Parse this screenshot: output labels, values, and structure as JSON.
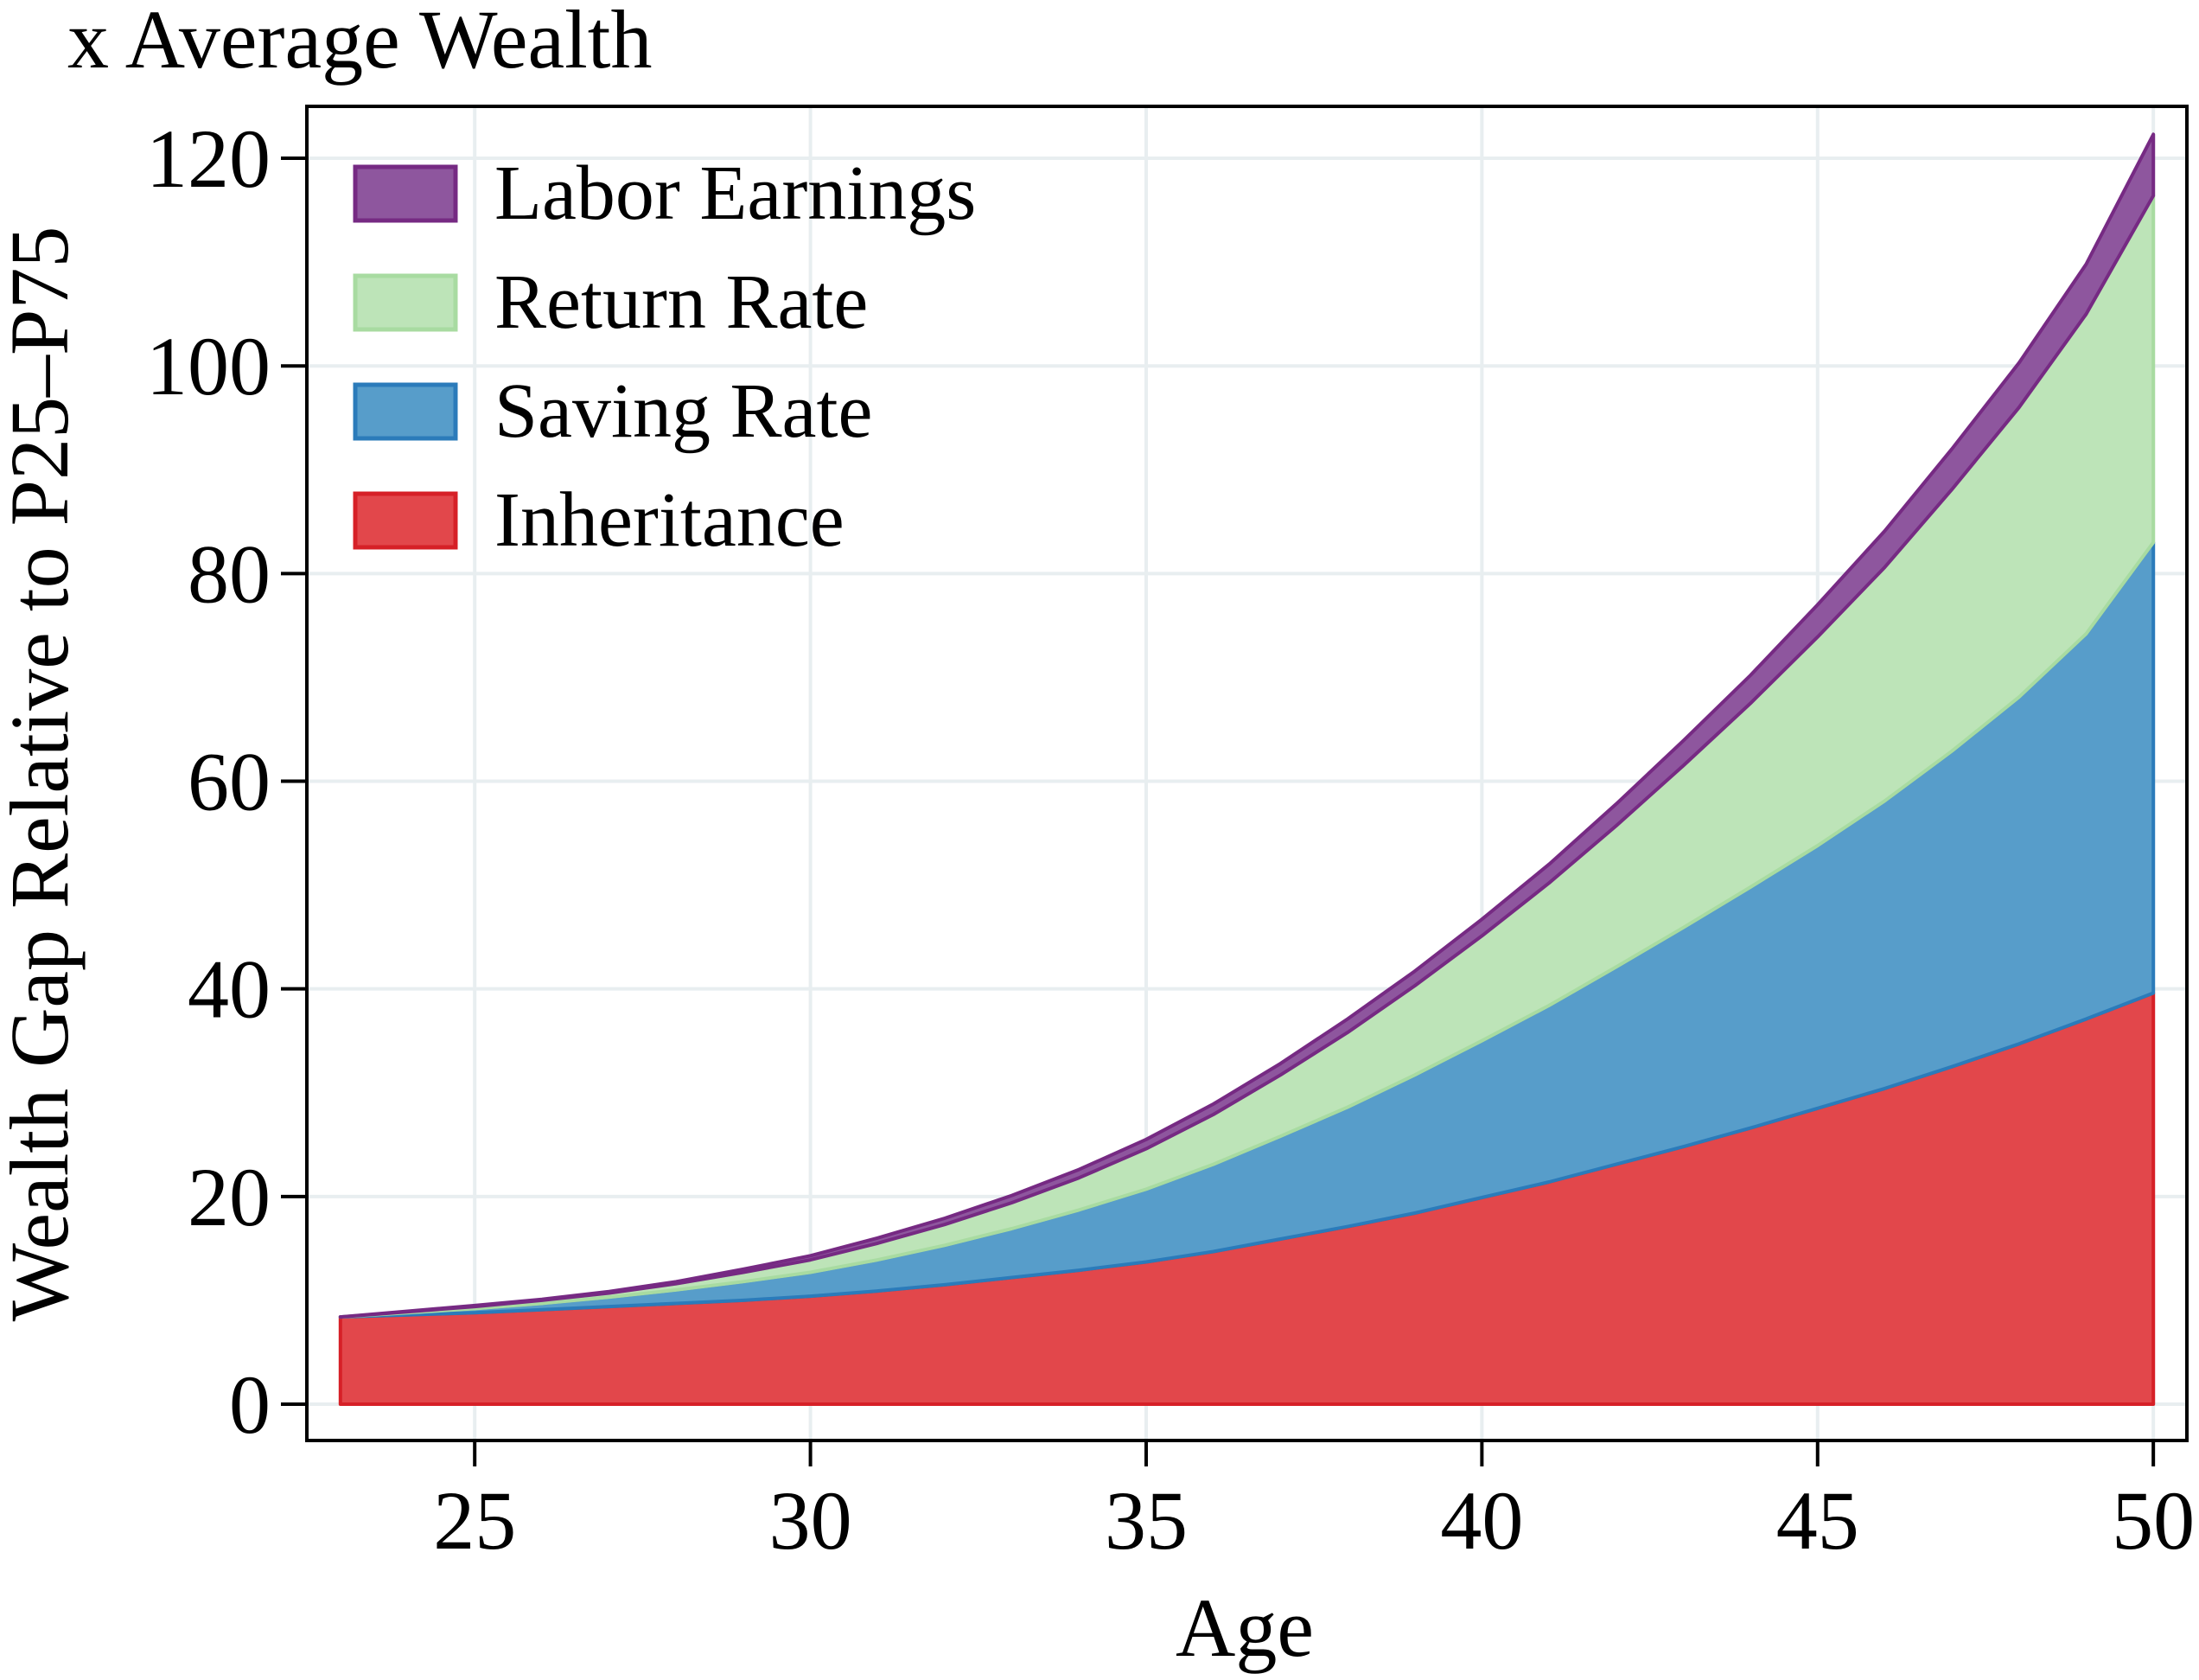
{
  "chart_data": {
    "type": "area",
    "stacked": true,
    "title": "",
    "unit_label": "x Average Wealth",
    "xlabel": "Age",
    "ylabel": "Wealth Gap Relative to P25–P75",
    "xlim": [
      22.5,
      50.5
    ],
    "ylim": [
      -3.5,
      125
    ],
    "xticks": [
      25,
      30,
      35,
      40,
      45,
      50
    ],
    "yticks": [
      0,
      20,
      40,
      60,
      80,
      100,
      120
    ],
    "grid": true,
    "legend_position": "top-left",
    "x": [
      23,
      24,
      25,
      26,
      27,
      28,
      29,
      30,
      31,
      32,
      33,
      34,
      35,
      36,
      37,
      38,
      39,
      40,
      41,
      42,
      43,
      44,
      45,
      46,
      47,
      48,
      49,
      50
    ],
    "series": [
      {
        "name": "Inheritance",
        "fill": "#e2474b",
        "stroke": "#d62027",
        "values": [
          8.4,
          8.6,
          8.8,
          9.1,
          9.4,
          9.7,
          10.0,
          10.4,
          10.9,
          11.5,
          12.2,
          12.9,
          13.7,
          14.7,
          15.9,
          17.1,
          18.4,
          19.9,
          21.4,
          23.1,
          24.8,
          26.6,
          28.5,
          30.4,
          32.5,
          34.7,
          37.1,
          39.6
        ]
      },
      {
        "name": "Saving Rate",
        "fill": "#579dca",
        "stroke": "#2b7bba",
        "values": [
          0.0,
          0.2,
          0.4,
          0.6,
          0.9,
          1.3,
          1.8,
          2.3,
          3.0,
          3.8,
          4.7,
          5.8,
          7.0,
          8.4,
          9.9,
          11.5,
          13.3,
          15.1,
          17.0,
          19.0,
          21.1,
          23.2,
          25.3,
          27.7,
          30.4,
          33.4,
          37.1,
          43.4
        ]
      },
      {
        "name": "Return Rate",
        "fill": "#bde4b8",
        "stroke": "#a8dba1",
        "values": [
          0.0,
          0.1,
          0.2,
          0.3,
          0.4,
          0.6,
          0.9,
          1.2,
          1.6,
          2.0,
          2.5,
          3.1,
          3.9,
          4.8,
          5.9,
          7.2,
          8.6,
          10.1,
          11.8,
          13.6,
          15.6,
          17.7,
          20.1,
          22.5,
          25.2,
          27.9,
          30.8,
          33.4
        ]
      },
      {
        "name": "Labor Earnings",
        "fill": "#8e569e",
        "stroke": "#762a83",
        "values": [
          0.0,
          0.05,
          0.1,
          0.1,
          0.15,
          0.2,
          0.3,
          0.4,
          0.5,
          0.6,
          0.7,
          0.8,
          0.9,
          1.0,
          1.1,
          1.3,
          1.4,
          1.6,
          1.8,
          2.1,
          2.4,
          2.7,
          3.1,
          3.5,
          3.9,
          4.3,
          4.8,
          5.9
        ]
      }
    ]
  }
}
